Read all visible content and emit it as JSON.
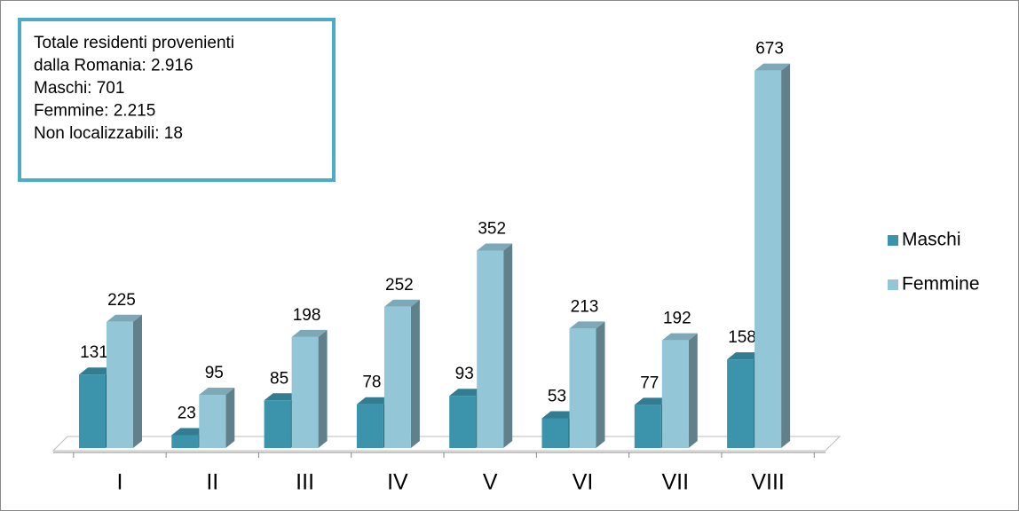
{
  "chart_data": {
    "type": "bar3d",
    "annotation": [
      "Totale residenti provenienti",
      "dalla Romania: 2.916",
      "Maschi: 701",
      "Femmine: 2.215",
      "Non localizzabili: 18"
    ],
    "categories": [
      "I",
      "II",
      "III",
      "IV",
      "V",
      "VI",
      "VII",
      "VIII"
    ],
    "series": [
      {
        "name": "Maschi",
        "color": "#3b93ac",
        "values": [
          131,
          23,
          85,
          78,
          93,
          53,
          77,
          158
        ]
      },
      {
        "name": "Femmine",
        "color": "#93c6d7",
        "values": [
          225,
          95,
          198,
          252,
          352,
          213,
          192,
          673
        ]
      }
    ],
    "legend": "right"
  }
}
